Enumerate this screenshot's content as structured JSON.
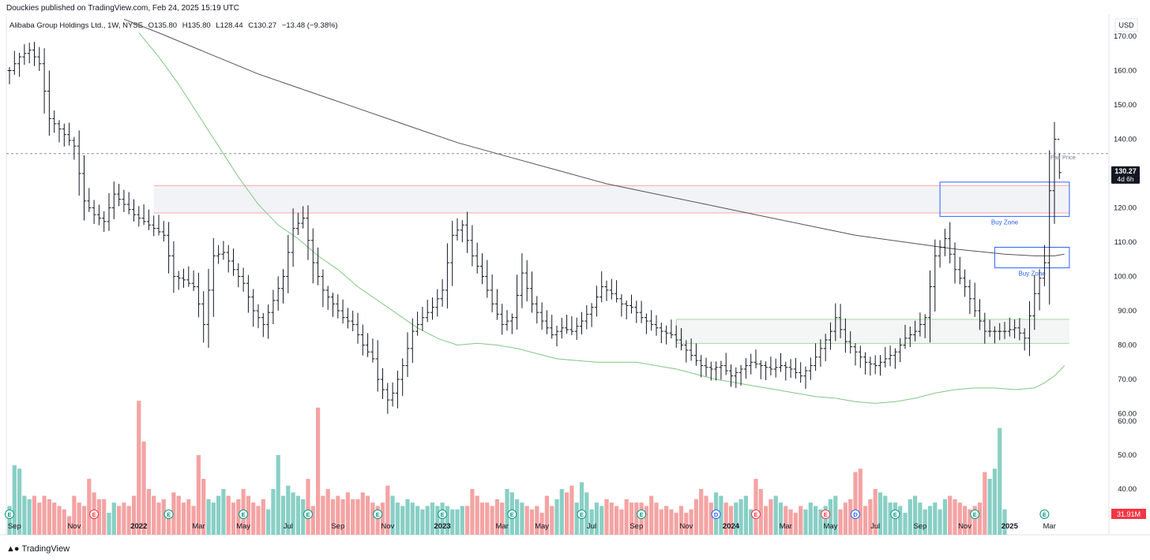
{
  "header": {
    "publisher": "Douckies published on TradingView.com, Feb 24, 2025 15:19 UTC",
    "symbol": "Alibaba Group Holdings Ltd., 1W, NYSE",
    "open": "O135.80",
    "high": "H135.80",
    "low": "L128.44",
    "close": "C130.27",
    "change": "−13.48 (−9.38%)"
  },
  "footer": {
    "brand": "TradingView",
    "logo": "tradingview-logo-icon"
  },
  "colors": {
    "up_volume": "#89cfc5",
    "down_volume": "#f4a3a3",
    "bar": "#131722",
    "ma_fast": "#81c784",
    "ma_slow": "#555555",
    "buy_zone": "#2962ff",
    "resistance_fill": "#f2f3f7",
    "resistance_border": "#f7a8a8",
    "support_border": "#a5d6a7",
    "last_price_bg": "#131722",
    "volume_badge": "#f23645"
  },
  "chart_data": {
    "type": "ohlc",
    "timeframe": "1W",
    "currency": "USD",
    "ylim": [
      55,
      175
    ],
    "y_ticks": [
      60,
      70,
      80,
      90,
      100,
      110,
      120,
      130,
      140,
      150,
      160,
      170
    ],
    "y_tick_labels": [
      "60.00",
      "70.00",
      "80.00",
      "90.00",
      "100.00",
      "110.00",
      "120.00",
      "130.00",
      "140.00",
      "150.00",
      "160.00",
      "170.00"
    ],
    "x_tick_labels": [
      "Sep",
      "Nov",
      "2022",
      "Mar",
      "May",
      "Jul",
      "Sep",
      "Nov",
      "2023",
      "Mar",
      "May",
      "Jul",
      "Sep",
      "Nov",
      "2024",
      "Mar",
      "May",
      "Jul",
      "Sep",
      "Nov",
      "2025",
      "Mar"
    ],
    "x_tick_weeks": [
      1,
      13,
      26,
      38,
      47,
      56,
      66,
      76,
      87,
      99,
      107,
      117,
      126,
      136,
      145,
      156,
      165,
      174,
      183,
      192,
      201,
      209
    ],
    "bold_ticks": [
      "2022",
      "2023",
      "2024",
      "2025"
    ],
    "last_price": "130.27",
    "countdown": "4d 6h",
    "dashed_price_level": 135.8,
    "volume_label": "31.91M",
    "volume_scale_ticks": [
      40,
      50,
      60
    ],
    "volume_scale_labels": [
      "40.00",
      "50.00",
      "60.00"
    ],
    "close_path": [
      [
        0,
        160
      ],
      [
        2,
        164
      ],
      [
        4,
        166
      ],
      [
        6,
        162
      ],
      [
        8,
        146
      ],
      [
        10,
        143
      ],
      [
        13,
        138
      ],
      [
        15,
        122
      ],
      [
        17,
        118
      ],
      [
        19,
        116
      ],
      [
        21,
        124
      ],
      [
        23,
        121
      ],
      [
        25,
        118
      ],
      [
        27,
        116
      ],
      [
        29,
        114
      ],
      [
        31,
        112
      ],
      [
        33,
        100
      ],
      [
        35,
        99
      ],
      [
        37,
        97
      ],
      [
        38,
        92
      ],
      [
        39,
        86
      ],
      [
        41,
        106
      ],
      [
        43,
        107
      ],
      [
        45,
        102
      ],
      [
        47,
        98
      ],
      [
        49,
        90
      ],
      [
        51,
        86
      ],
      [
        53,
        93
      ],
      [
        55,
        100
      ],
      [
        57,
        114
      ],
      [
        59,
        117
      ],
      [
        61,
        104
      ],
      [
        63,
        96
      ],
      [
        65,
        92
      ],
      [
        67,
        88
      ],
      [
        69,
        86
      ],
      [
        71,
        80
      ],
      [
        73,
        76
      ],
      [
        74,
        70
      ],
      [
        76,
        64
      ],
      [
        77,
        66
      ],
      [
        79,
        74
      ],
      [
        81,
        84
      ],
      [
        83,
        88
      ],
      [
        85,
        91
      ],
      [
        87,
        96
      ],
      [
        89,
        112
      ],
      [
        91,
        115
      ],
      [
        93,
        106
      ],
      [
        95,
        100
      ],
      [
        97,
        92
      ],
      [
        99,
        86
      ],
      [
        101,
        88
      ],
      [
        103,
        101
      ],
      [
        105,
        92
      ],
      [
        107,
        87
      ],
      [
        109,
        83
      ],
      [
        111,
        85
      ],
      [
        113,
        84
      ],
      [
        115,
        87
      ],
      [
        117,
        91
      ],
      [
        119,
        97
      ],
      [
        121,
        95
      ],
      [
        123,
        92
      ],
      [
        125,
        91
      ],
      [
        127,
        88
      ],
      [
        129,
        86
      ],
      [
        131,
        84
      ],
      [
        133,
        83
      ],
      [
        135,
        80
      ],
      [
        137,
        77
      ],
      [
        139,
        74
      ],
      [
        141,
        73
      ],
      [
        143,
        74
      ],
      [
        145,
        71
      ],
      [
        147,
        73
      ],
      [
        149,
        75
      ],
      [
        151,
        74
      ],
      [
        153,
        73
      ],
      [
        155,
        74
      ],
      [
        157,
        73
      ],
      [
        159,
        71
      ],
      [
        161,
        74
      ],
      [
        163,
        79
      ],
      [
        165,
        84
      ],
      [
        166,
        88
      ],
      [
        168,
        81
      ],
      [
        170,
        78
      ],
      [
        172,
        75
      ],
      [
        174,
        74
      ],
      [
        176,
        76
      ],
      [
        178,
        78
      ],
      [
        180,
        82
      ],
      [
        182,
        84
      ],
      [
        184,
        88
      ],
      [
        186,
        106
      ],
      [
        188,
        111
      ],
      [
        190,
        102
      ],
      [
        192,
        97
      ],
      [
        194,
        90
      ],
      [
        196,
        84
      ],
      [
        198,
        84
      ],
      [
        200,
        84
      ],
      [
        202,
        85
      ],
      [
        204,
        82
      ],
      [
        206,
        95
      ],
      [
        208,
        104
      ],
      [
        209,
        125
      ],
      [
        210,
        140
      ],
      [
        211,
        130.27
      ]
    ],
    "volume_values": [
      35,
      47,
      46,
      38,
      37,
      38,
      36,
      38,
      37,
      36,
      35,
      34,
      32,
      38,
      36,
      35,
      43,
      39,
      37,
      37,
      33,
      36,
      35,
      36,
      35,
      38,
      66,
      54,
      40,
      38,
      36,
      37,
      33,
      39,
      38,
      36,
      37,
      35,
      50,
      43,
      37,
      36,
      38,
      40,
      38,
      36,
      37,
      40,
      38,
      36,
      35,
      37,
      34,
      40,
      50,
      38,
      41,
      39,
      38,
      37,
      43,
      35,
      64,
      38,
      40,
      37,
      38,
      37,
      39,
      37,
      37,
      39,
      38,
      36,
      35,
      36,
      41,
      38,
      36,
      35,
      37,
      36,
      35,
      34,
      35,
      36,
      35,
      36,
      35,
      34,
      34,
      35,
      35,
      40,
      38,
      36,
      36,
      35,
      37,
      36,
      40,
      39,
      37,
      36,
      35,
      34,
      35,
      33,
      38,
      35,
      37,
      40,
      39,
      41,
      36,
      42,
      39,
      34,
      36,
      35,
      37,
      36,
      35,
      34,
      37,
      36,
      36,
      36,
      35,
      38,
      36,
      34,
      35,
      34,
      33,
      35,
      33,
      34,
      37,
      40,
      38,
      36,
      39,
      38,
      36,
      35,
      36,
      37,
      38,
      34,
      43,
      40,
      35,
      37,
      38,
      36,
      35,
      34,
      33,
      35,
      34,
      36,
      35,
      34,
      35,
      37,
      38,
      34,
      36,
      37,
      45,
      46,
      35,
      37,
      40,
      39,
      38,
      36,
      36,
      35,
      33,
      37,
      38,
      36,
      34,
      35,
      36,
      34,
      37,
      38,
      37,
      36,
      35,
      34,
      35,
      36,
      45,
      43,
      46,
      58,
      34
    ],
    "ma_fast": [
      [
        26,
        171
      ],
      [
        30,
        164
      ],
      [
        34,
        156
      ],
      [
        38,
        147
      ],
      [
        42,
        138
      ],
      [
        46,
        129
      ],
      [
        50,
        121
      ],
      [
        54,
        115
      ],
      [
        58,
        111
      ],
      [
        62,
        106
      ],
      [
        66,
        102
      ],
      [
        70,
        97
      ],
      [
        74,
        93
      ],
      [
        78,
        89
      ],
      [
        82,
        85
      ],
      [
        86,
        82
      ],
      [
        90,
        80
      ],
      [
        94,
        80.5
      ],
      [
        98,
        80
      ],
      [
        102,
        79
      ],
      [
        106,
        77.5
      ],
      [
        110,
        76
      ],
      [
        114,
        75.5
      ],
      [
        118,
        75
      ],
      [
        122,
        75
      ],
      [
        126,
        75
      ],
      [
        130,
        74
      ],
      [
        134,
        73
      ],
      [
        138,
        71.5
      ],
      [
        142,
        70
      ],
      [
        146,
        69
      ],
      [
        150,
        68
      ],
      [
        154,
        67
      ],
      [
        158,
        66
      ],
      [
        162,
        65
      ],
      [
        166,
        64.5
      ],
      [
        170,
        63.5
      ],
      [
        174,
        63
      ],
      [
        178,
        63.5
      ],
      [
        182,
        64.5
      ],
      [
        186,
        66
      ],
      [
        190,
        67
      ],
      [
        194,
        67.5
      ],
      [
        198,
        67.5
      ],
      [
        202,
        67
      ],
      [
        206,
        67.5
      ],
      [
        208,
        69
      ],
      [
        210,
        71
      ],
      [
        212,
        74
      ]
    ],
    "ma_slow": [
      [
        23,
        175
      ],
      [
        30,
        171
      ],
      [
        40,
        165
      ],
      [
        50,
        159
      ],
      [
        60,
        154
      ],
      [
        70,
        149
      ],
      [
        80,
        144
      ],
      [
        90,
        139
      ],
      [
        100,
        135
      ],
      [
        110,
        131
      ],
      [
        120,
        127
      ],
      [
        130,
        124
      ],
      [
        140,
        121
      ],
      [
        150,
        118
      ],
      [
        160,
        115
      ],
      [
        170,
        112
      ],
      [
        180,
        110
      ],
      [
        190,
        108
      ],
      [
        200,
        106.5
      ],
      [
        206,
        106
      ],
      [
        210,
        106
      ],
      [
        212,
        106.5
      ]
    ],
    "zones": [
      {
        "kind": "resistance",
        "from_week": 29,
        "to_week": 213,
        "low": 118.5,
        "high": 126.5
      },
      {
        "kind": "support",
        "from_week": 134,
        "to_week": 213,
        "low": 80.5,
        "high": 87.5
      },
      {
        "kind": "buy",
        "label": "Buy Zone",
        "from_week": 187,
        "to_week": 213,
        "low": 117.5,
        "high": 127.5
      },
      {
        "kind": "buy",
        "label": "Buy Zone",
        "from_week": 198,
        "to_week": 213,
        "low": 102.5,
        "high": 108.5
      }
    ],
    "annotation": {
      "label": "Fair Price",
      "week": 213,
      "price": 133.5
    },
    "earnings_weeks": [
      0,
      17,
      32,
      47,
      60,
      74,
      87,
      101,
      115,
      127,
      150,
      164,
      178,
      194,
      208
    ],
    "dividend_weeks": [
      142,
      170
    ],
    "highlight_e_weeks": [
      17,
      150,
      164
    ],
    "dividend_labels": [
      "D",
      "D"
    ],
    "earnings_label": "E"
  }
}
